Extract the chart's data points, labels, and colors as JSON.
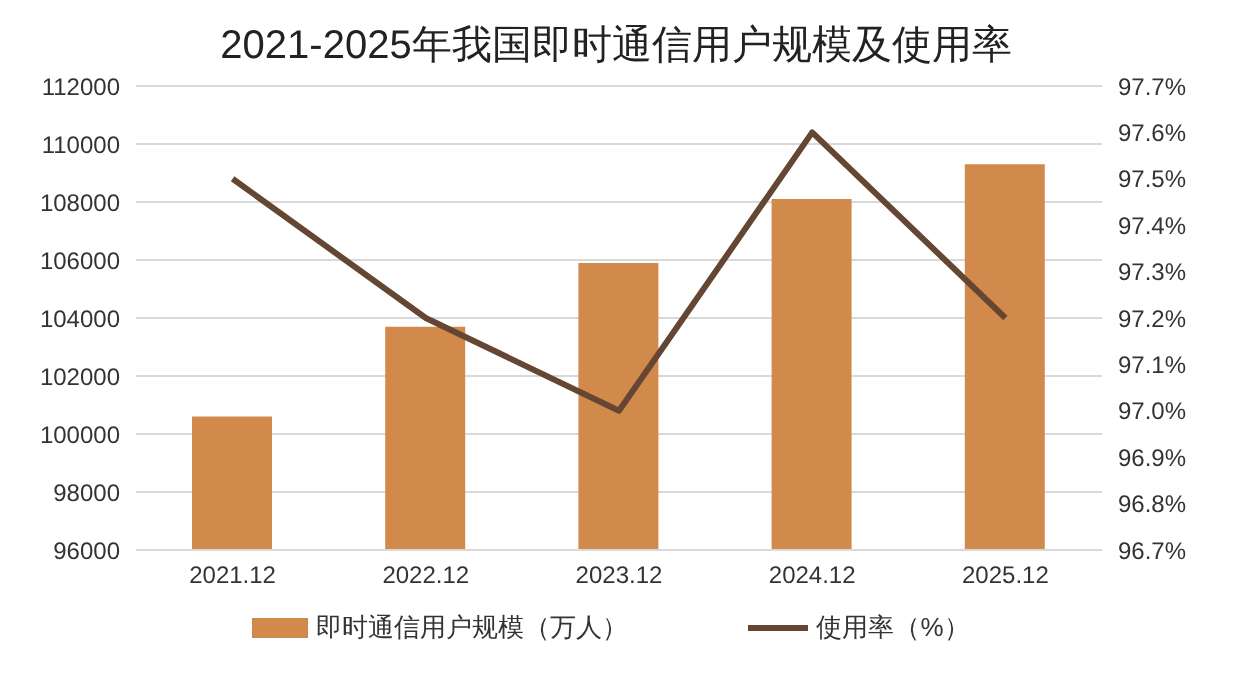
{
  "chart_data": {
    "type": "bar",
    "title": "2021-2025年我国即时通信用户规模及使用率",
    "categories": [
      "2021.12",
      "2022.12",
      "2023.12",
      "2024.12",
      "2025.12"
    ],
    "series": [
      {
        "name": "即时通信用户规模（万人）",
        "color": "#d28a4c",
        "values": [
          100600,
          103700,
          105900,
          108100,
          109300
        ]
      },
      {
        "name": "使用率（%）",
        "type": "line",
        "axis": "y2",
        "color": "#644632",
        "values": [
          97.5,
          97.2,
          97.0,
          97.6,
          97.2
        ],
        "marker": "none",
        "line_style": "solid"
      }
    ],
    "ylim": [
      96000,
      112000
    ],
    "yticks": [
      96000,
      98000,
      100000,
      102000,
      104000,
      106000,
      108000,
      110000,
      112000
    ],
    "y2lim": [
      96.7,
      97.7
    ],
    "y2ticks": [
      {
        "value": 96.7,
        "label": "96.7%"
      },
      {
        "value": 96.8,
        "label": "96.8%"
      },
      {
        "value": 96.9,
        "label": "96.9%"
      },
      {
        "value": 97.0,
        "label": "97.0%"
      },
      {
        "value": 97.1,
        "label": "97.1%"
      },
      {
        "value": 97.2,
        "label": "97.2%"
      },
      {
        "value": 97.3,
        "label": "97.3%"
      },
      {
        "value": 97.4,
        "label": "97.4%"
      },
      {
        "value": 97.5,
        "label": "97.5%"
      },
      {
        "value": 97.6,
        "label": "97.6%"
      },
      {
        "value": 97.7,
        "label": "97.7%"
      }
    ],
    "grid": "y",
    "legend": "bottom"
  }
}
